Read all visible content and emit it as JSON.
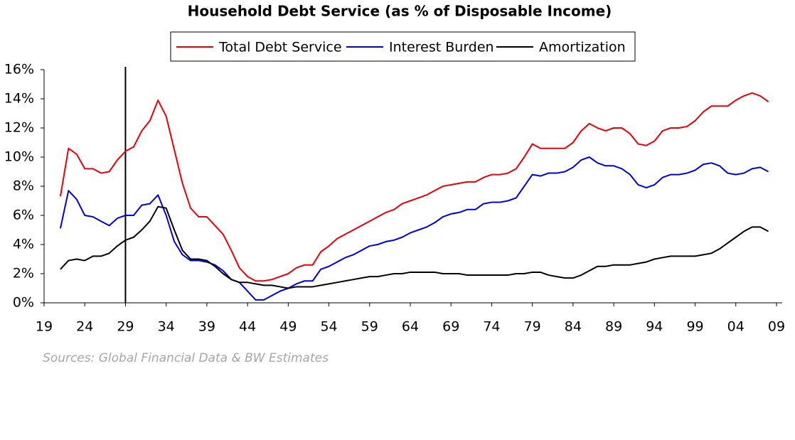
{
  "chart_data": {
    "type": "line",
    "title": "Household Debt Service (as % of Disposable Income)",
    "source": "Sources: Global Financial Data & BW Estimates",
    "x": [
      1921,
      1922,
      1923,
      1924,
      1925,
      1926,
      1927,
      1928,
      1929,
      1930,
      1931,
      1932,
      1933,
      1934,
      1935,
      1936,
      1937,
      1938,
      1939,
      1940,
      1941,
      1942,
      1943,
      1944,
      1945,
      1946,
      1947,
      1948,
      1949,
      1950,
      1951,
      1952,
      1953,
      1954,
      1955,
      1956,
      1957,
      1958,
      1959,
      1960,
      1961,
      1962,
      1963,
      1964,
      1965,
      1966,
      1967,
      1968,
      1969,
      1970,
      1971,
      1972,
      1973,
      1974,
      1975,
      1976,
      1977,
      1978,
      1979,
      1980,
      1981,
      1982,
      1983,
      1984,
      1985,
      1986,
      1987,
      1988,
      1989,
      1990,
      1991,
      1992,
      1993,
      1994,
      1995,
      1996,
      1997,
      1998,
      1999,
      2000,
      2001,
      2002,
      2003,
      2004,
      2005,
      2006,
      2007,
      2008
    ],
    "series": [
      {
        "name": "Total Debt Service",
        "color": "#e8000b",
        "values": [
          7.3,
          10.6,
          10.2,
          9.2,
          9.2,
          8.9,
          9.0,
          9.8,
          10.4,
          10.7,
          11.8,
          12.5,
          13.9,
          12.8,
          10.5,
          8.2,
          6.5,
          5.9,
          5.9,
          5.3,
          4.7,
          3.6,
          2.4,
          1.8,
          1.5,
          1.5,
          1.6,
          1.8,
          2.0,
          2.4,
          2.6,
          2.6,
          3.5,
          3.9,
          4.4,
          4.7,
          5.0,
          5.3,
          5.6,
          5.9,
          6.2,
          6.4,
          6.8,
          7.0,
          7.2,
          7.4,
          7.7,
          8.0,
          8.1,
          8.2,
          8.3,
          8.3,
          8.6,
          8.8,
          8.8,
          8.9,
          9.2,
          10.0,
          10.9,
          10.6,
          10.6,
          10.6,
          10.6,
          11.0,
          11.8,
          12.3,
          12.0,
          11.8,
          12.0,
          12.0,
          11.6,
          10.9,
          10.8,
          11.1,
          11.8,
          12.0,
          12.0,
          12.1,
          12.5,
          13.1,
          13.5,
          13.5,
          13.5,
          13.9,
          14.2,
          14.4,
          14.2,
          13.8
        ]
      },
      {
        "name": "Interest Burden",
        "color": "#0000e0",
        "values": [
          5.1,
          7.7,
          7.1,
          6.0,
          5.9,
          5.6,
          5.3,
          5.8,
          6.0,
          6.0,
          6.7,
          6.8,
          7.4,
          6.0,
          4.2,
          3.3,
          2.9,
          2.9,
          2.8,
          2.6,
          2.2,
          1.6,
          1.4,
          0.8,
          0.2,
          0.2,
          0.5,
          0.8,
          1.0,
          1.3,
          1.5,
          1.5,
          2.3,
          2.5,
          2.8,
          3.1,
          3.3,
          3.6,
          3.9,
          4.0,
          4.2,
          4.3,
          4.5,
          4.8,
          5.0,
          5.2,
          5.5,
          5.9,
          6.1,
          6.2,
          6.4,
          6.4,
          6.8,
          6.9,
          6.9,
          7.0,
          7.2,
          8.0,
          8.8,
          8.7,
          8.9,
          8.9,
          9.0,
          9.3,
          9.8,
          10.0,
          9.6,
          9.4,
          9.4,
          9.2,
          8.8,
          8.1,
          7.9,
          8.1,
          8.6,
          8.8,
          8.8,
          8.9,
          9.1,
          9.5,
          9.6,
          9.4,
          8.9,
          8.8,
          8.9,
          9.2,
          9.3,
          9.0
        ]
      },
      {
        "name": "Amortization",
        "color": "#000000",
        "values": [
          2.3,
          2.9,
          3.0,
          2.9,
          3.2,
          3.2,
          3.4,
          3.9,
          4.3,
          4.5,
          5.0,
          5.6,
          6.6,
          6.5,
          5.0,
          3.6,
          3.0,
          3.0,
          2.9,
          2.5,
          2.0,
          1.6,
          1.4,
          1.4,
          1.3,
          1.2,
          1.2,
          1.1,
          1.0,
          1.1,
          1.1,
          1.1,
          1.2,
          1.3,
          1.4,
          1.5,
          1.6,
          1.7,
          1.8,
          1.8,
          1.9,
          2.0,
          2.0,
          2.1,
          2.1,
          2.1,
          2.1,
          2.0,
          2.0,
          2.0,
          1.9,
          1.9,
          1.9,
          1.9,
          1.9,
          1.9,
          2.0,
          2.0,
          2.1,
          2.1,
          1.9,
          1.8,
          1.7,
          1.7,
          1.9,
          2.2,
          2.5,
          2.5,
          2.6,
          2.6,
          2.6,
          2.7,
          2.8,
          3.0,
          3.1,
          3.2,
          3.2,
          3.2,
          3.2,
          3.3,
          3.4,
          3.7,
          4.1,
          4.5,
          4.9,
          5.2,
          5.2,
          4.9
        ]
      }
    ],
    "vline": 1929,
    "xlim": [
      1919,
      2009.7
    ],
    "xticks": [
      {
        "value": 1919,
        "label": "19"
      },
      {
        "value": 1924,
        "label": "24"
      },
      {
        "value": 1929,
        "label": "29"
      },
      {
        "value": 1934,
        "label": "34"
      },
      {
        "value": 1939,
        "label": "39"
      },
      {
        "value": 1944,
        "label": "44"
      },
      {
        "value": 1949,
        "label": "49"
      },
      {
        "value": 1954,
        "label": "54"
      },
      {
        "value": 1959,
        "label": "59"
      },
      {
        "value": 1964,
        "label": "64"
      },
      {
        "value": 1969,
        "label": "69"
      },
      {
        "value": 1974,
        "label": "74"
      },
      {
        "value": 1979,
        "label": "79"
      },
      {
        "value": 1984,
        "label": "84"
      },
      {
        "value": 1989,
        "label": "89"
      },
      {
        "value": 1994,
        "label": "94"
      },
      {
        "value": 1999,
        "label": "99"
      },
      {
        "value": 2004,
        "label": "04"
      },
      {
        "value": 2009,
        "label": "09"
      }
    ],
    "ylim": [
      0,
      16
    ],
    "yticks": [
      {
        "value": 0,
        "label": "0%"
      },
      {
        "value": 2,
        "label": "2%"
      },
      {
        "value": 4,
        "label": "4%"
      },
      {
        "value": 6,
        "label": "6%"
      },
      {
        "value": 8,
        "label": "8%"
      },
      {
        "value": 10,
        "label": "10%"
      },
      {
        "value": 12,
        "label": "12%"
      },
      {
        "value": 14,
        "label": "14%"
      },
      {
        "value": 16,
        "label": "16%"
      }
    ],
    "grid": false,
    "legend": "top"
  }
}
